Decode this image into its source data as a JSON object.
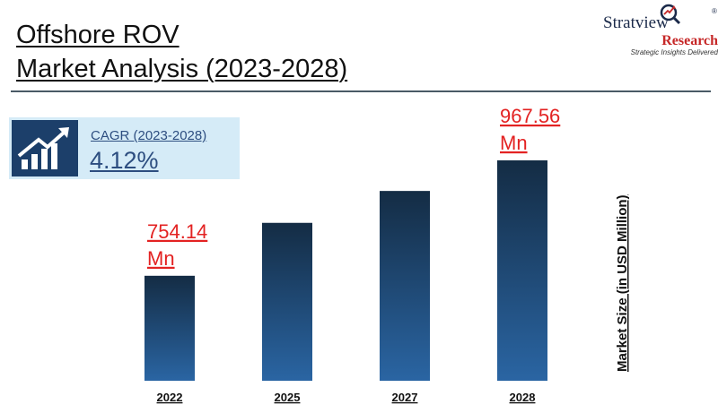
{
  "header": {
    "title_line1": "Offshore ROV",
    "title_line2": "Market Analysis (2023-2028)"
  },
  "logo": {
    "word": "Stratview",
    "registered": "®",
    "research": "Research",
    "tagline": "Strategic Insights Delivered"
  },
  "cagr": {
    "label": "CAGR (2023-2028)",
    "value": "4.12%",
    "icon": "growth-chart-icon"
  },
  "colors": {
    "bar_top": "#142c44",
    "bar_bottom": "#2a65a3",
    "label_red": "#e32222",
    "cagr_bg": "#d5ebf7",
    "accent_navy": "#1c3f6a"
  },
  "chart_data": {
    "type": "bar",
    "categories": [
      "2022",
      "2025",
      "2027",
      "2028"
    ],
    "values": [
      754.14,
      852,
      911,
      967.56
    ],
    "data_labels": [
      [
        "754.14",
        "Mn"
      ],
      null,
      null,
      [
        "967.56",
        "Mn"
      ]
    ],
    "ylabel": "Market Size (in  USD Million)",
    "xlabel": "",
    "grid": false,
    "legend": "none"
  }
}
